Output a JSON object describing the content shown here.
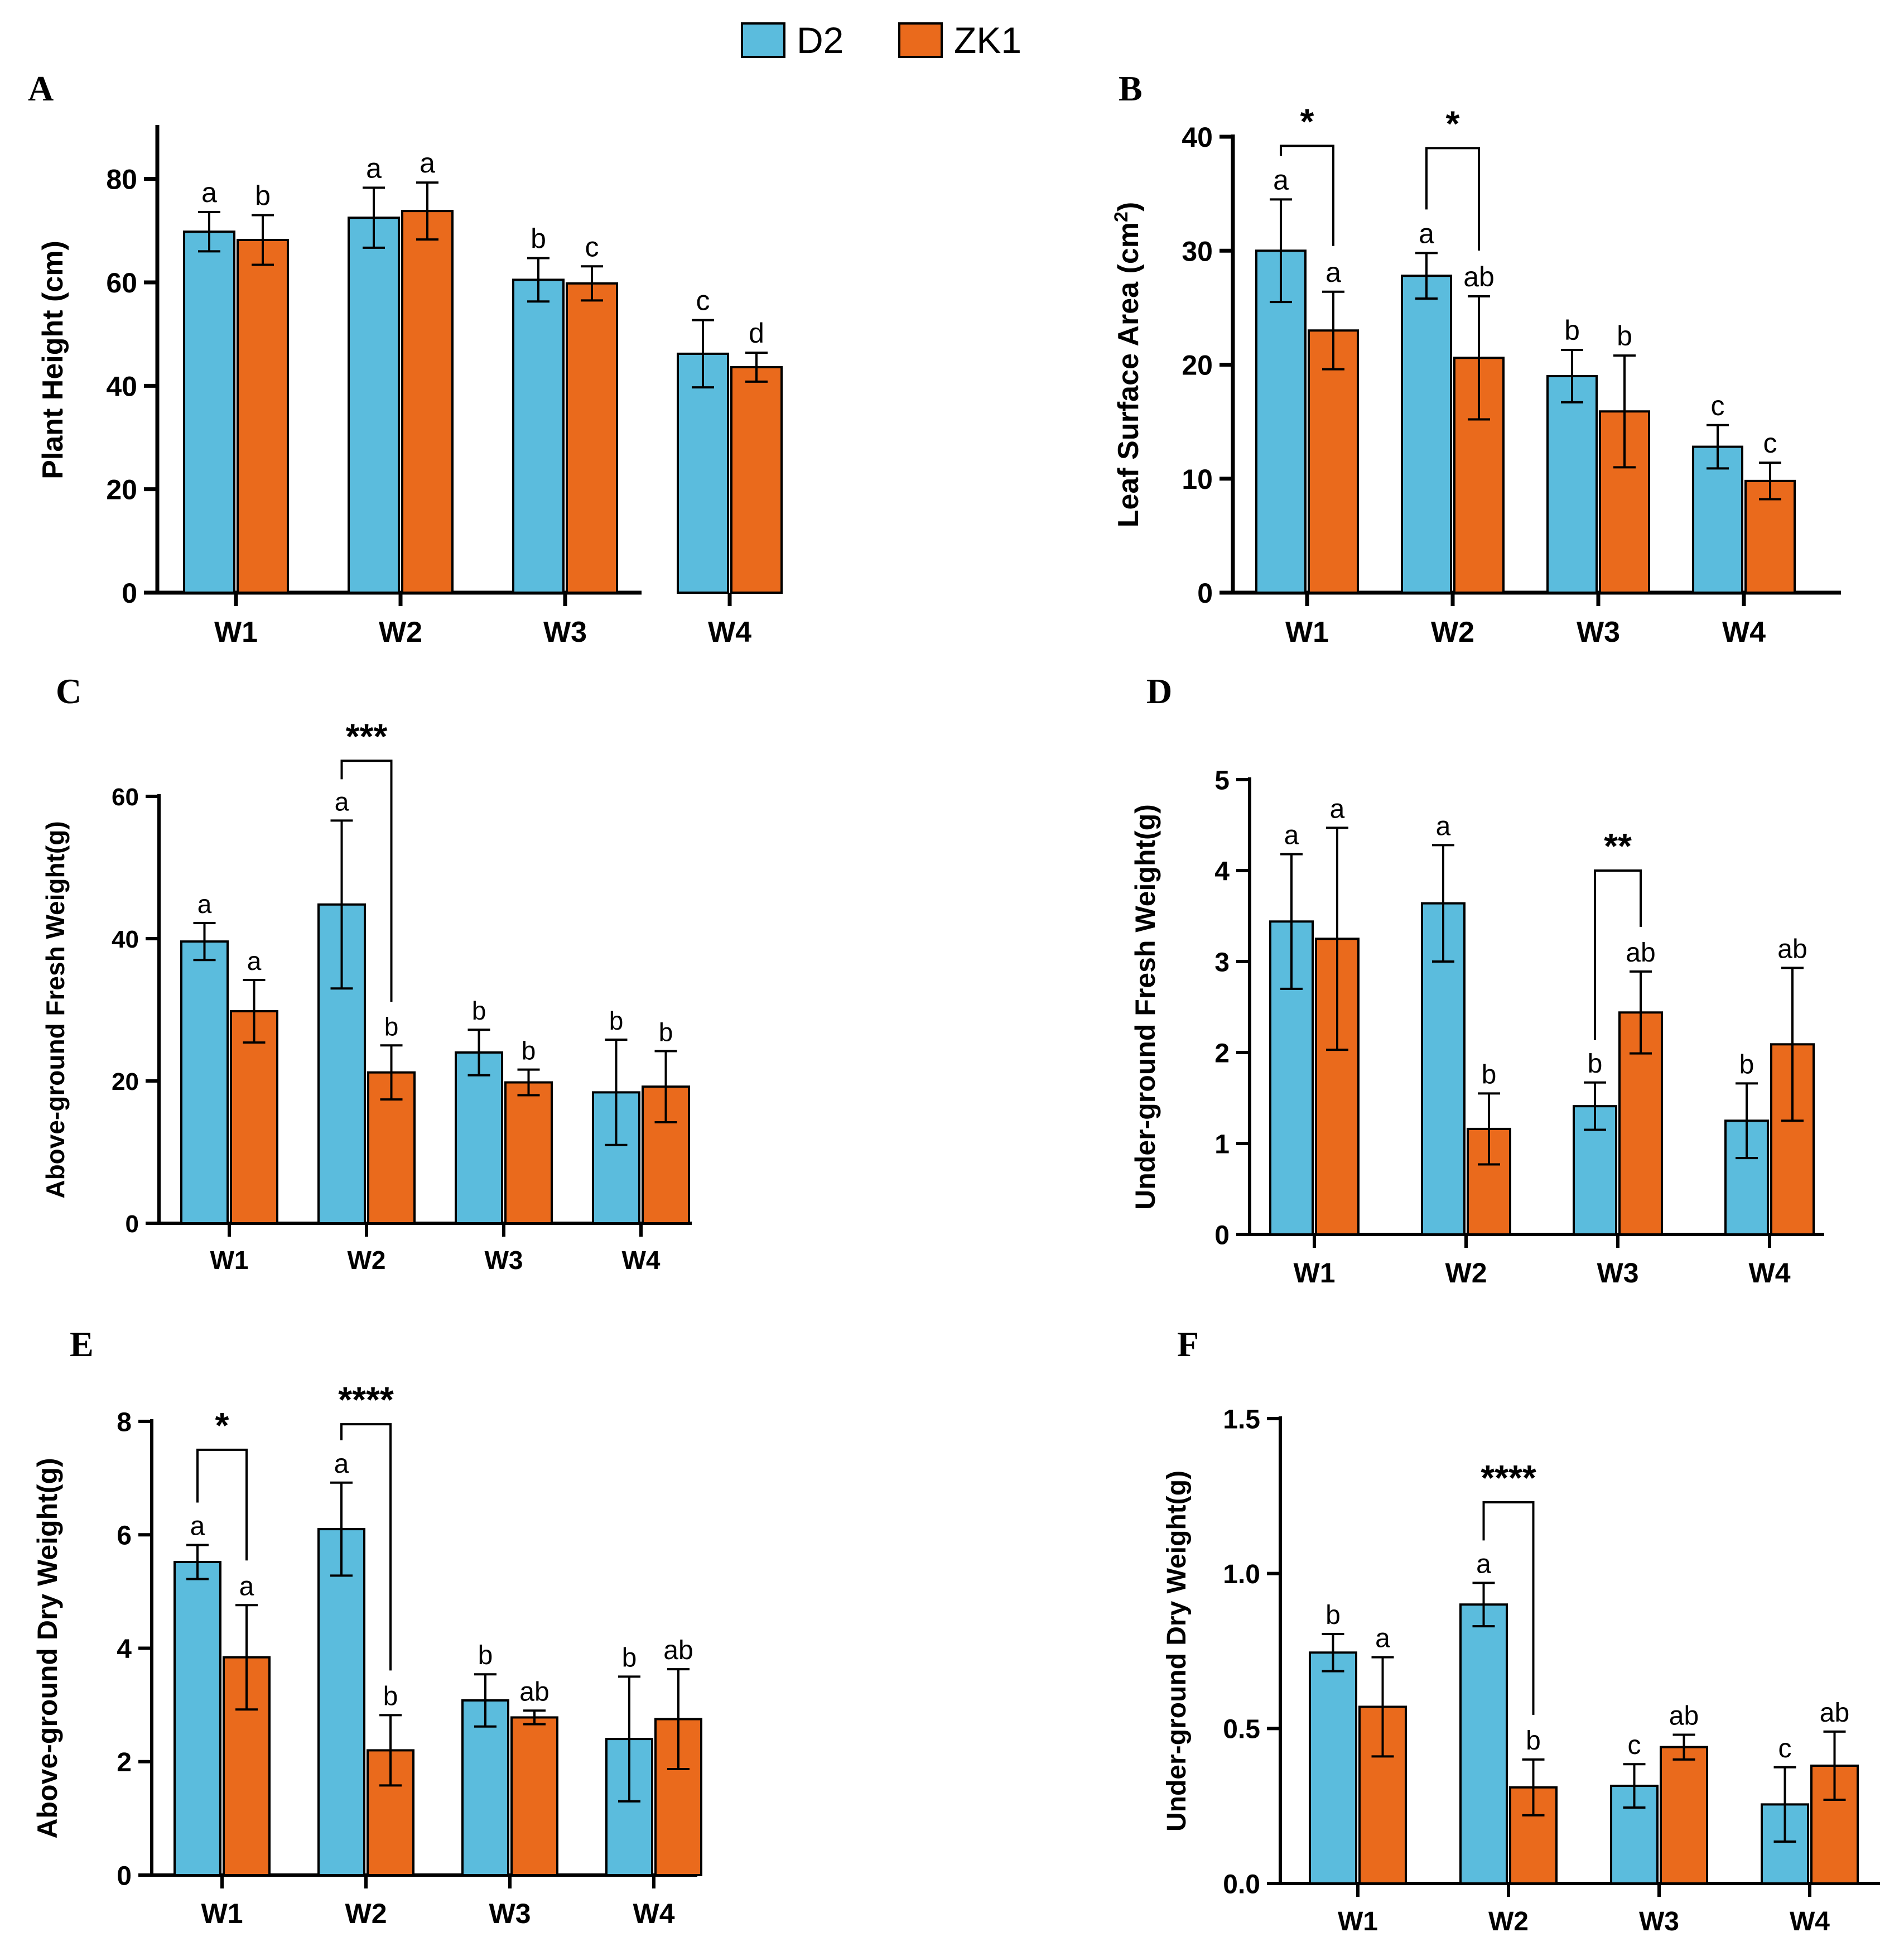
{
  "legend": {
    "entries": [
      {
        "name": "D2",
        "color": "#5BBCDD"
      },
      {
        "name": "ZK1",
        "color": "#EA6A1C"
      }
    ]
  },
  "chart_data": [
    {
      "panel_label": "A",
      "type": "bar",
      "ylabel": "Plant Height (cm)",
      "ylim": [
        0,
        90
      ],
      "yticks": [
        0,
        20,
        40,
        60,
        80
      ],
      "categories": [
        "W1",
        "W2",
        "W3",
        "W4"
      ],
      "series": [
        {
          "name": "D2",
          "color": "#5BBCDD",
          "values": [
            69.8,
            72.5,
            60.5,
            46.2
          ],
          "errors": [
            3.8,
            5.8,
            4.2,
            6.5
          ],
          "labels": [
            "a",
            "a",
            "b",
            "c"
          ]
        },
        {
          "name": "ZK1",
          "color": "#EA6A1C",
          "values": [
            68.2,
            73.8,
            59.8,
            43.6
          ],
          "errors": [
            4.8,
            5.5,
            3.3,
            2.8
          ],
          "labels": [
            "b",
            "a",
            "c",
            "d"
          ]
        }
      ],
      "significance": []
    },
    {
      "panel_label": "B",
      "type": "bar",
      "ylabel": "Leaf Surface Area (cm²)",
      "ylim": [
        0,
        40
      ],
      "yticks": [
        0,
        10,
        20,
        30,
        40
      ],
      "categories": [
        "W1",
        "W2",
        "W3",
        "W4"
      ],
      "series": [
        {
          "name": "D2",
          "color": "#5BBCDD",
          "values": [
            30.0,
            27.8,
            19.0,
            12.8
          ],
          "errors": [
            4.5,
            2.0,
            2.3,
            1.9
          ],
          "labels": [
            "a",
            "a",
            "b",
            "c"
          ]
        },
        {
          "name": "ZK1",
          "color": "#EA6A1C",
          "values": [
            23.0,
            20.6,
            15.9,
            9.8
          ],
          "errors": [
            3.4,
            5.4,
            4.9,
            1.6
          ],
          "labels": [
            "a",
            "ab",
            "b",
            "c"
          ]
        }
      ],
      "significance": [
        {
          "category": 0,
          "stars": "*",
          "bracket_y": 39.2
        },
        {
          "category": 1,
          "stars": "*",
          "bracket_y": 39.0
        }
      ]
    },
    {
      "panel_label": "C",
      "type": "bar",
      "ylabel": "Above-ground Fresh Weight(g)",
      "ylim": [
        0,
        60
      ],
      "yticks": [
        0,
        20,
        40,
        60
      ],
      "categories": [
        "W1",
        "W2",
        "W3",
        "W4"
      ],
      "series": [
        {
          "name": "D2",
          "color": "#5BBCDD",
          "values": [
            39.6,
            44.8,
            24.0,
            18.4
          ],
          "errors": [
            2.6,
            11.8,
            3.2,
            7.4
          ],
          "labels": [
            "a",
            "a",
            "b",
            "b"
          ]
        },
        {
          "name": "ZK1",
          "color": "#EA6A1C",
          "values": [
            29.8,
            21.2,
            19.8,
            19.2
          ],
          "errors": [
            4.4,
            3.8,
            1.8,
            5.0
          ],
          "labels": [
            "a",
            "b",
            "b",
            "b"
          ]
        }
      ],
      "significance": [
        {
          "category": 1,
          "stars": "***",
          "bracket_y": 65.0
        }
      ]
    },
    {
      "panel_label": "D",
      "type": "bar",
      "ylabel": "Under-ground Fresh Weight(g)",
      "ylim": [
        0,
        5
      ],
      "yticks": [
        0,
        1,
        2,
        3,
        4,
        5
      ],
      "categories": [
        "W1",
        "W2",
        "W3",
        "W4"
      ],
      "series": [
        {
          "name": "D2",
          "color": "#5BBCDD",
          "values": [
            3.44,
            3.64,
            1.41,
            1.25
          ],
          "errors": [
            0.74,
            0.64,
            0.26,
            0.41
          ],
          "labels": [
            "a",
            "a",
            "b",
            "b"
          ]
        },
        {
          "name": "ZK1",
          "color": "#EA6A1C",
          "values": [
            3.25,
            1.16,
            2.44,
            2.09
          ],
          "errors": [
            1.22,
            0.39,
            0.45,
            0.84
          ],
          "labels": [
            "a",
            "b",
            "ab",
            "ab"
          ]
        }
      ],
      "significance": [
        {
          "category": 2,
          "stars": "**",
          "bracket_y": 4.0
        }
      ]
    },
    {
      "panel_label": "E",
      "type": "bar",
      "ylabel": "Above-ground Dry Weight(g)",
      "ylim": [
        0,
        8
      ],
      "yticks": [
        0,
        2,
        4,
        6,
        8
      ],
      "categories": [
        "W1",
        "W2",
        "W3",
        "W4"
      ],
      "series": [
        {
          "name": "D2",
          "color": "#5BBCDD",
          "values": [
            5.52,
            6.1,
            3.08,
            2.4
          ],
          "errors": [
            0.3,
            0.82,
            0.46,
            1.1
          ],
          "labels": [
            "a",
            "a",
            "b",
            "b"
          ]
        },
        {
          "name": "ZK1",
          "color": "#EA6A1C",
          "values": [
            3.84,
            2.2,
            2.78,
            2.75
          ],
          "errors": [
            0.92,
            0.62,
            0.12,
            0.88
          ],
          "labels": [
            "a",
            "b",
            "ab",
            "ab"
          ]
        }
      ],
      "significance": [
        {
          "category": 0,
          "stars": "*",
          "bracket_y": 7.5
        },
        {
          "category": 1,
          "stars": "****",
          "bracket_y": 7.95
        }
      ]
    },
    {
      "panel_label": "F",
      "type": "bar",
      "ylabel": "Under-ground Dry Weight(g)",
      "ylim": [
        0,
        1.5
      ],
      "yticks": [
        "0.0",
        "0.5",
        "1.0",
        "1.5"
      ],
      "categories": [
        "W1",
        "W2",
        "W3",
        "W4"
      ],
      "series": [
        {
          "name": "D2",
          "color": "#5BBCDD",
          "values": [
            0.745,
            0.9,
            0.315,
            0.255
          ],
          "errors": [
            0.06,
            0.07,
            0.07,
            0.12
          ],
          "labels": [
            "b",
            "a",
            "c",
            "c"
          ]
        },
        {
          "name": "ZK1",
          "color": "#EA6A1C",
          "values": [
            0.57,
            0.31,
            0.44,
            0.38
          ],
          "errors": [
            0.16,
            0.09,
            0.04,
            0.11
          ],
          "labels": [
            "a",
            "b",
            "ab",
            "ab"
          ]
        }
      ],
      "significance": [
        {
          "category": 1,
          "stars": "****",
          "bracket_y": 1.23
        }
      ]
    }
  ]
}
